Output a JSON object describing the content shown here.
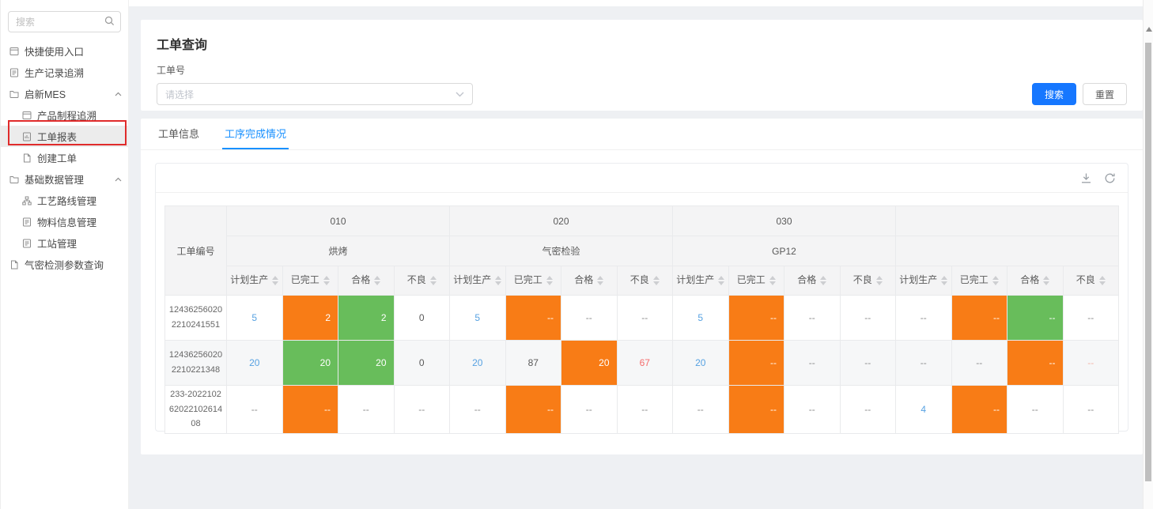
{
  "sidebar": {
    "search": {
      "placeholder": "搜索"
    },
    "items": [
      {
        "label": "快捷使用入口",
        "icon": "panel-icon",
        "level": 0,
        "selected": false,
        "expandable": false
      },
      {
        "label": "生产记录追溯",
        "icon": "record-icon",
        "level": 0,
        "selected": false,
        "expandable": false
      },
      {
        "label": "启新MES",
        "icon": "folder-icon",
        "level": 0,
        "selected": false,
        "expandable": true
      },
      {
        "label": "产品制程追溯",
        "icon": "panel-icon",
        "level": 1,
        "selected": false,
        "expandable": false
      },
      {
        "label": "工单报表",
        "icon": "report-icon",
        "level": 1,
        "selected": true,
        "expandable": false
      },
      {
        "label": "创建工单",
        "icon": "doc-icon",
        "level": 1,
        "selected": false,
        "expandable": false
      },
      {
        "label": "基础数据管理",
        "icon": "folder-icon",
        "level": 0,
        "selected": false,
        "expandable": true
      },
      {
        "label": "工艺路线管理",
        "icon": "flow-icon",
        "level": 1,
        "selected": false,
        "expandable": false
      },
      {
        "label": "物料信息管理",
        "icon": "record-icon",
        "level": 1,
        "selected": false,
        "expandable": false
      },
      {
        "label": "工站管理",
        "icon": "record-icon",
        "level": 1,
        "selected": false,
        "expandable": false
      },
      {
        "label": "气密检测参数查询",
        "icon": "doc-icon",
        "level": 0,
        "selected": false,
        "expandable": false
      }
    ]
  },
  "query": {
    "title": "工单查询",
    "field_label": "工单号",
    "select_placeholder": "请选择",
    "search_label": "搜索",
    "reset_label": "重置"
  },
  "tabs": [
    {
      "label": "工单信息",
      "active": false
    },
    {
      "label": "工序完成情况",
      "active": true
    }
  ],
  "toolbar": {
    "icons": [
      "download-icon",
      "refresh-icon"
    ]
  },
  "table": {
    "row_header": "工单编号",
    "groups": [
      {
        "code": "010",
        "name": "烘烤"
      },
      {
        "code": "020",
        "name": "气密检验"
      },
      {
        "code": "030",
        "name": "GP12"
      },
      {
        "code": "",
        "name": ""
      }
    ],
    "sub_columns": [
      "计划生产",
      "已完工",
      "合格",
      "不良"
    ],
    "rows": [
      {
        "order_no": "124362560202210241551",
        "cells": [
          {
            "v": "5",
            "style": "link"
          },
          {
            "v": "2",
            "style": "orange"
          },
          {
            "v": "2",
            "style": "green"
          },
          {
            "v": "0",
            "style": "num"
          },
          {
            "v": "5",
            "style": "link"
          },
          {
            "v": "--",
            "style": "orange"
          },
          {
            "v": "--",
            "style": "plain"
          },
          {
            "v": "--",
            "style": "plain"
          },
          {
            "v": "5",
            "style": "link"
          },
          {
            "v": "--",
            "style": "orange"
          },
          {
            "v": "--",
            "style": "plain"
          },
          {
            "v": "--",
            "style": "plain"
          },
          {
            "v": "--",
            "style": "plain"
          },
          {
            "v": "--",
            "style": "orange"
          },
          {
            "v": "--",
            "style": "green"
          },
          {
            "v": "--",
            "style": "plain"
          }
        ]
      },
      {
        "order_no": "124362560202210221348",
        "cells": [
          {
            "v": "20",
            "style": "link"
          },
          {
            "v": "20",
            "style": "green"
          },
          {
            "v": "20",
            "style": "green"
          },
          {
            "v": "0",
            "style": "num"
          },
          {
            "v": "20",
            "style": "link"
          },
          {
            "v": "87",
            "style": "num"
          },
          {
            "v": "20",
            "style": "orange"
          },
          {
            "v": "67",
            "style": "red"
          },
          {
            "v": "20",
            "style": "link"
          },
          {
            "v": "--",
            "style": "orange"
          },
          {
            "v": "--",
            "style": "plain"
          },
          {
            "v": "--",
            "style": "plain"
          },
          {
            "v": "--",
            "style": "plain"
          },
          {
            "v": "--",
            "style": "plain"
          },
          {
            "v": "--",
            "style": "orange"
          },
          {
            "v": "--",
            "style": "red-light"
          }
        ]
      },
      {
        "order_no": "233-20221026202210261408",
        "cells": [
          {
            "v": "--",
            "style": "plain"
          },
          {
            "v": "--",
            "style": "orange"
          },
          {
            "v": "--",
            "style": "plain"
          },
          {
            "v": "--",
            "style": "plain"
          },
          {
            "v": "--",
            "style": "plain"
          },
          {
            "v": "--",
            "style": "orange"
          },
          {
            "v": "--",
            "style": "plain"
          },
          {
            "v": "--",
            "style": "plain"
          },
          {
            "v": "--",
            "style": "plain"
          },
          {
            "v": "--",
            "style": "orange"
          },
          {
            "v": "--",
            "style": "plain"
          },
          {
            "v": "--",
            "style": "plain"
          },
          {
            "v": "4",
            "style": "link"
          },
          {
            "v": "--",
            "style": "orange"
          },
          {
            "v": "--",
            "style": "plain"
          },
          {
            "v": "--",
            "style": "plain"
          }
        ]
      }
    ]
  },
  "colors": {
    "accent_blue": "#1677ff",
    "tab_blue": "#1890ff",
    "orange": "#f87c16",
    "green": "#68bd5b",
    "link_blue": "#57a2e2",
    "red": "#f56c6c",
    "red_light": "#f3b3a6",
    "annotation_red": "#e02b2b"
  }
}
